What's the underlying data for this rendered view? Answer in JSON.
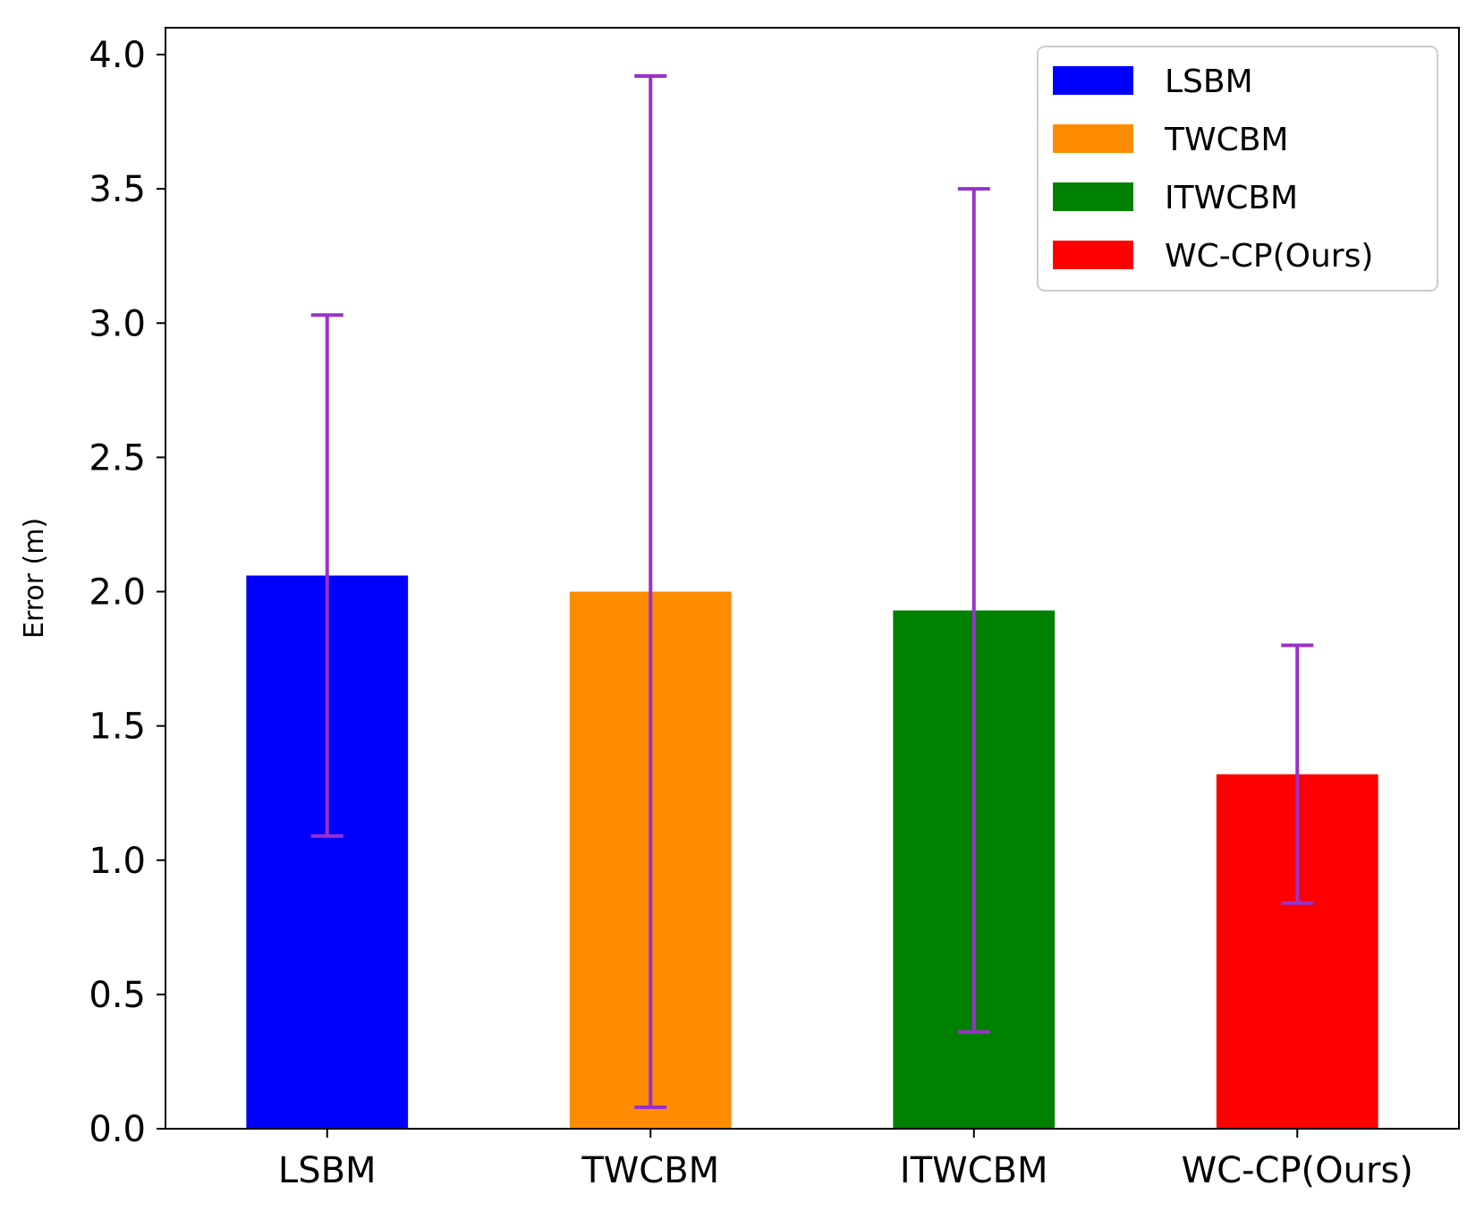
{
  "chart_data": {
    "type": "bar",
    "title": "",
    "xlabel": "",
    "ylabel": "Error (m)",
    "ylim": [
      0,
      4.1
    ],
    "yticks": [
      "0.0",
      "0.5",
      "1.0",
      "1.5",
      "2.0",
      "2.5",
      "3.0",
      "3.5",
      "4.0"
    ],
    "grid": false,
    "legend_position": "top-right",
    "categories": [
      "LSBM",
      "TWCBM",
      "ITWCBM",
      "WC-CP(Ours)"
    ],
    "values": [
      2.06,
      2.0,
      1.93,
      1.32
    ],
    "error_low": [
      1.09,
      0.08,
      0.36,
      0.84
    ],
    "error_high": [
      3.03,
      3.92,
      3.5,
      1.8
    ],
    "colors": [
      "#0000ff",
      "#ff8c00",
      "#008000",
      "#ff0000"
    ],
    "error_color": "#9932cc",
    "legend": [
      "LSBM",
      "TWCBM",
      "ITWCBM",
      "WC-CP(Ours)"
    ]
  }
}
